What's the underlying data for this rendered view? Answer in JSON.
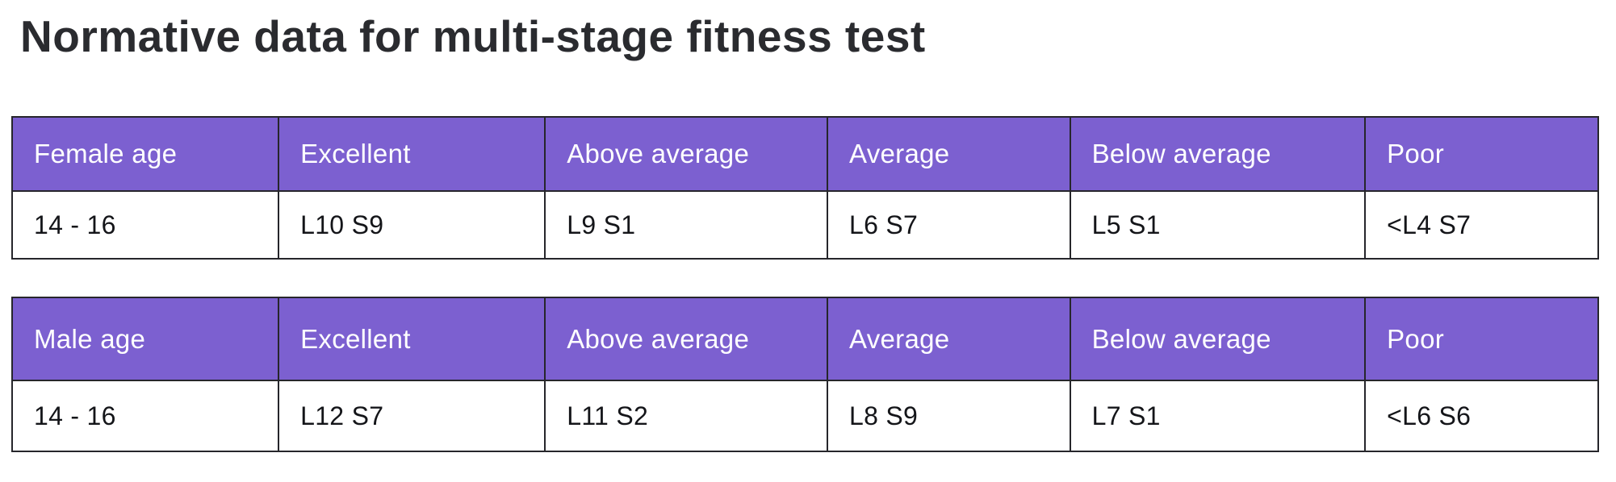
{
  "page": {
    "title": "Normative data for multi-stage fitness test"
  },
  "colors": {
    "header_bg": "#7c60d0",
    "header_text": "#ffffff",
    "border": "#26262b",
    "title_text": "#2a2b2f",
    "body_text": "#141519",
    "page_bg": "#ffffff"
  },
  "tables": [
    {
      "name": "female",
      "headers": [
        "Female age",
        "Excellent",
        "Above average",
        "Average",
        "Below average",
        "Poor"
      ],
      "rows": [
        [
          "14 - 16",
          "L10 S9",
          "L9 S1",
          "L6 S7",
          "L5 S1",
          "<L4 S7"
        ]
      ]
    },
    {
      "name": "male",
      "headers": [
        "Male age",
        "Excellent",
        "Above average",
        "Average",
        "Below average",
        "Poor"
      ],
      "rows": [
        [
          "14 - 16",
          "L12 S7",
          "L11 S2",
          "L8 S9",
          "L7 S1",
          "<L6 S6"
        ]
      ]
    }
  ]
}
